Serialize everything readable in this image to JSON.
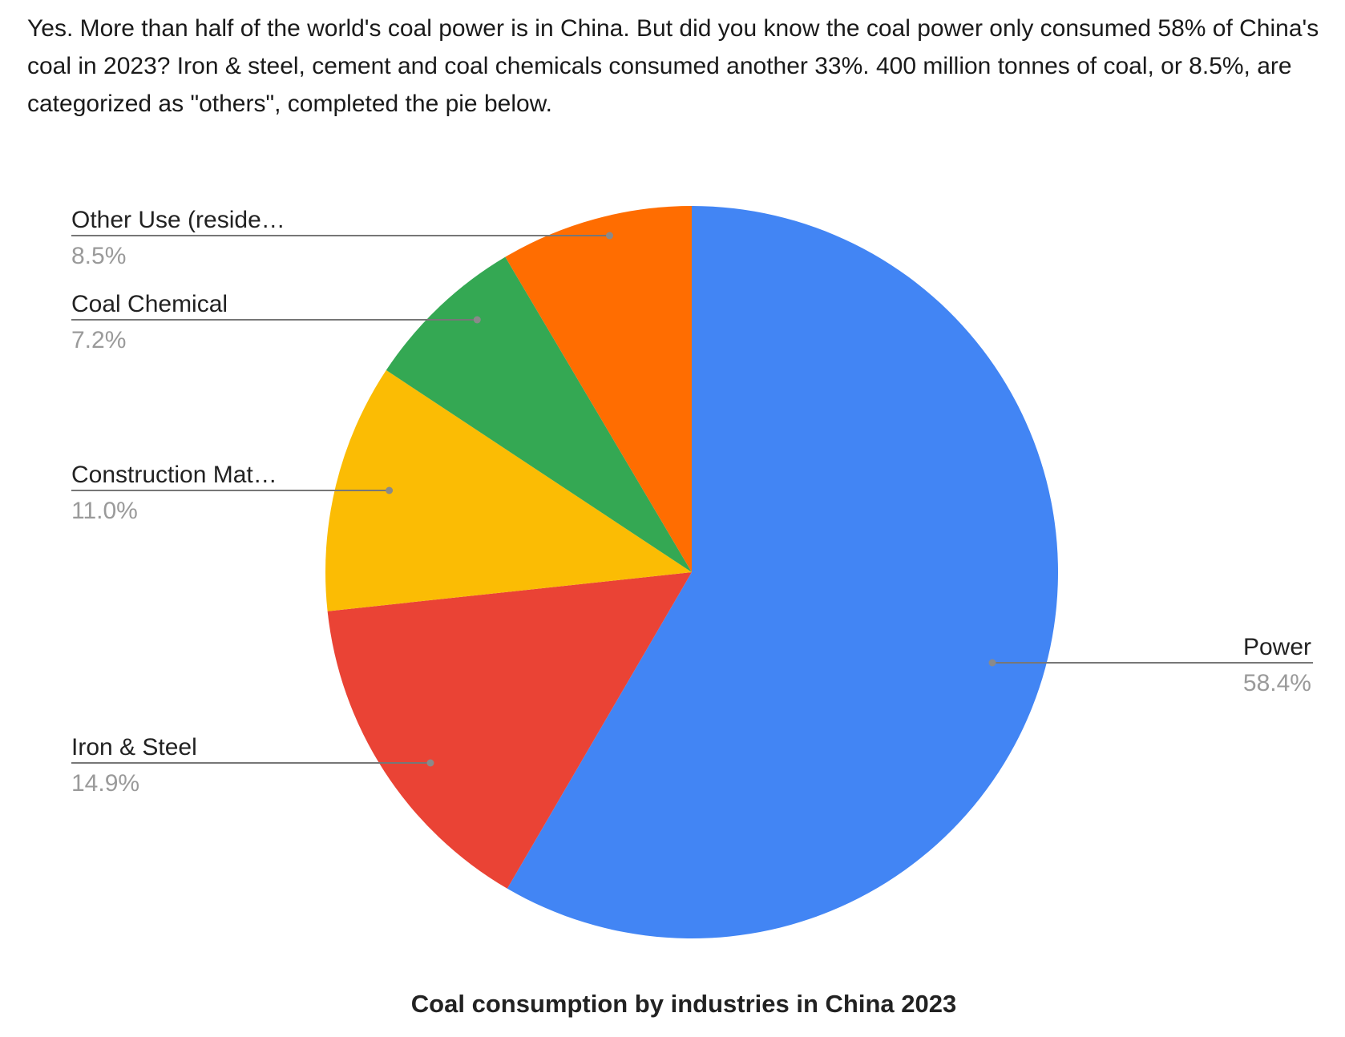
{
  "intro_text": "Yes. More than half of the world's coal power is in China. But did you know the coal power only consumed 58% of China's coal in 2023? Iron & steel, cement and coal chemicals consumed another 33%. 400 million tonnes of coal, or 8.5%, are categorized as \"others\", completed the pie below.",
  "chart_data": {
    "type": "pie",
    "title": "Coal consumption by industries in China 2023",
    "slices": [
      {
        "label": "Power",
        "value": 58.4,
        "value_label": "58.4%",
        "color": "#4285F4"
      },
      {
        "label": "Iron & Steel",
        "value": 14.9,
        "value_label": "14.9%",
        "color": "#EA4335"
      },
      {
        "label": "Construction Mat…",
        "value": 11.0,
        "value_label": "11.0%",
        "color": "#FBBC04"
      },
      {
        "label": "Coal Chemical",
        "value": 7.2,
        "value_label": "7.2%",
        "color": "#34A853"
      },
      {
        "label": "Other Use (reside…",
        "value": 8.5,
        "value_label": "8.5%",
        "color": "#FF6D01"
      }
    ],
    "start": "12 o'clock, clockwise",
    "legend": "labeled slices"
  }
}
